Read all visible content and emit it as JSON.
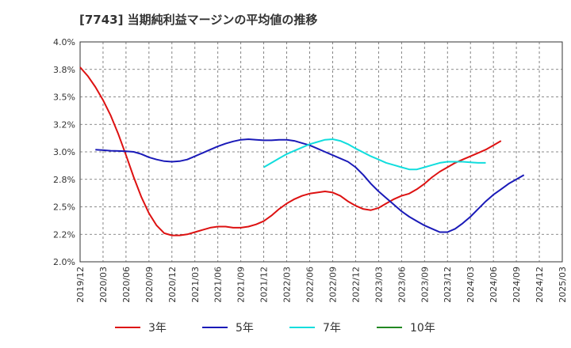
{
  "chart_data": {
    "type": "line",
    "title": "[7743]  当期純利益マージンの平均値の推移",
    "xlabel": "",
    "ylabel": "",
    "ylim": [
      2.0,
      4.0
    ],
    "y_ticks": [
      "4.0%",
      "3.8%",
      "3.5%",
      "3.2%",
      "3.0%",
      "2.8%",
      "2.5%",
      "2.2%",
      "2.0%"
    ],
    "y_tick_values": [
      4.0,
      3.75,
      3.5,
      3.25,
      3.0,
      2.75,
      2.5,
      2.25,
      2.0
    ],
    "x_ticks": [
      "2019/12",
      "2020/03",
      "2020/06",
      "2020/09",
      "2020/12",
      "2021/03",
      "2021/06",
      "2021/09",
      "2021/12",
      "2022/03",
      "2022/06",
      "2022/09",
      "2022/12",
      "2023/03",
      "2023/06",
      "2023/09",
      "2023/12",
      "2024/03",
      "2024/06",
      "2024/09",
      "2024/12",
      "2025/03"
    ],
    "grid": true,
    "grid_style": "dashed",
    "legend_position": "bottom",
    "series": [
      {
        "name": "3年",
        "color": "#dd1111",
        "start_index": 0,
        "values": [
          3.77,
          3.69,
          3.59,
          3.47,
          3.33,
          3.16,
          2.97,
          2.77,
          2.59,
          2.44,
          2.33,
          2.26,
          2.24,
          2.24,
          2.25,
          2.27,
          2.29,
          2.31,
          2.32,
          2.32,
          2.31,
          2.31,
          2.32,
          2.34,
          2.37,
          2.42,
          2.48,
          2.53,
          2.57,
          2.6,
          2.62,
          2.63,
          2.64,
          2.63,
          2.6,
          2.55,
          2.51,
          2.48,
          2.47,
          2.49,
          2.53,
          2.57,
          2.6,
          2.62,
          2.66,
          2.71,
          2.77,
          2.82,
          2.86,
          2.9,
          2.93,
          2.96,
          2.99,
          3.02,
          3.06,
          3.1
        ]
      },
      {
        "name": "5年",
        "color": "#1a1ab8",
        "start_index": 2,
        "values": [
          3.02,
          3.015,
          3.01,
          3.008,
          3.005,
          3.0,
          2.98,
          2.95,
          2.93,
          2.915,
          2.91,
          2.915,
          2.93,
          2.96,
          2.99,
          3.02,
          3.05,
          3.075,
          3.095,
          3.11,
          3.115,
          3.11,
          3.105,
          3.105,
          3.11,
          3.11,
          3.1,
          3.08,
          3.06,
          3.03,
          3.0,
          2.97,
          2.94,
          2.91,
          2.86,
          2.79,
          2.71,
          2.64,
          2.58,
          2.52,
          2.46,
          2.41,
          2.37,
          2.33,
          2.3,
          2.27,
          2.27,
          2.3,
          2.35,
          2.41,
          2.48,
          2.55,
          2.61,
          2.66,
          2.71,
          2.75,
          2.79
        ]
      },
      {
        "name": "7年",
        "color": "#11dddd",
        "start_index": 24,
        "values": [
          2.86,
          2.9,
          2.94,
          2.98,
          3.01,
          3.04,
          3.07,
          3.09,
          3.11,
          3.115,
          3.1,
          3.07,
          3.03,
          2.995,
          2.96,
          2.93,
          2.9,
          2.88,
          2.86,
          2.84,
          2.84,
          2.86,
          2.88,
          2.9,
          2.91,
          2.91,
          2.91,
          2.905,
          2.9,
          2.9
        ]
      },
      {
        "name": "10年",
        "color": "#228822",
        "start_index": 0,
        "values": []
      }
    ]
  }
}
